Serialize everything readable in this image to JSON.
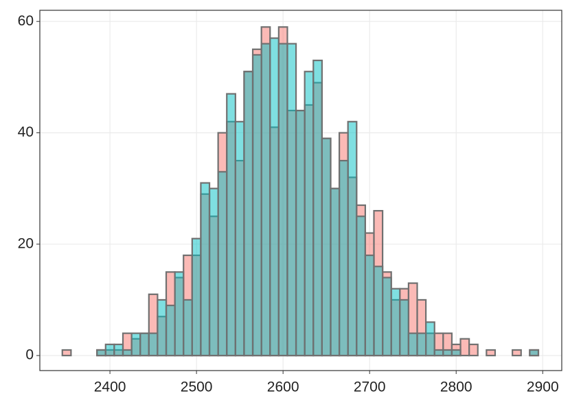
{
  "chart_data": {
    "type": "histogram",
    "bins": [
      2345,
      2355,
      2365,
      2375,
      2385,
      2395,
      2405,
      2415,
      2425,
      2435,
      2445,
      2455,
      2465,
      2475,
      2485,
      2495,
      2505,
      2515,
      2525,
      2535,
      2545,
      2555,
      2565,
      2575,
      2585,
      2595,
      2605,
      2615,
      2625,
      2635,
      2645,
      2655,
      2665,
      2675,
      2685,
      2695,
      2705,
      2715,
      2725,
      2735,
      2745,
      2755,
      2765,
      2775,
      2785,
      2795,
      2805,
      2815,
      2825,
      2835,
      2845,
      2855,
      2865,
      2875,
      2885,
      2895
    ],
    "series": [
      {
        "color": "#F8766D",
        "values": [
          1,
          0,
          0,
          0,
          1,
          1,
          1,
          4,
          3,
          4,
          11,
          7,
          15,
          14,
          18,
          18,
          29,
          25,
          40,
          42,
          35,
          51,
          55,
          59,
          41,
          59,
          44,
          44,
          45,
          49,
          39,
          30,
          40,
          32,
          27,
          22,
          26,
          15,
          10,
          12,
          13,
          10,
          4,
          4,
          4,
          2,
          3,
          2,
          0,
          1,
          0,
          0,
          1,
          0,
          1
        ]
      },
      {
        "color": "#00BFC4",
        "values": [
          0,
          0,
          0,
          0,
          1,
          2,
          2,
          1,
          4,
          4,
          4,
          10,
          9,
          15,
          10,
          21,
          31,
          30,
          33,
          47,
          42,
          51,
          54,
          56,
          57,
          56,
          56,
          44,
          51,
          53,
          39,
          30,
          35,
          42,
          25,
          18,
          16,
          14,
          12,
          10,
          4,
          4,
          6,
          1,
          1,
          1,
          0,
          0,
          0,
          0,
          0,
          0,
          0,
          0,
          1
        ]
      }
    ],
    "xlim": [
      2319,
      2922
    ],
    "ylim": [
      -2.7,
      62
    ],
    "xticks": [
      2400,
      2500,
      2600,
      2700,
      2800,
      2900
    ],
    "yticks": [
      0,
      20,
      40,
      60
    ],
    "grid": true
  }
}
